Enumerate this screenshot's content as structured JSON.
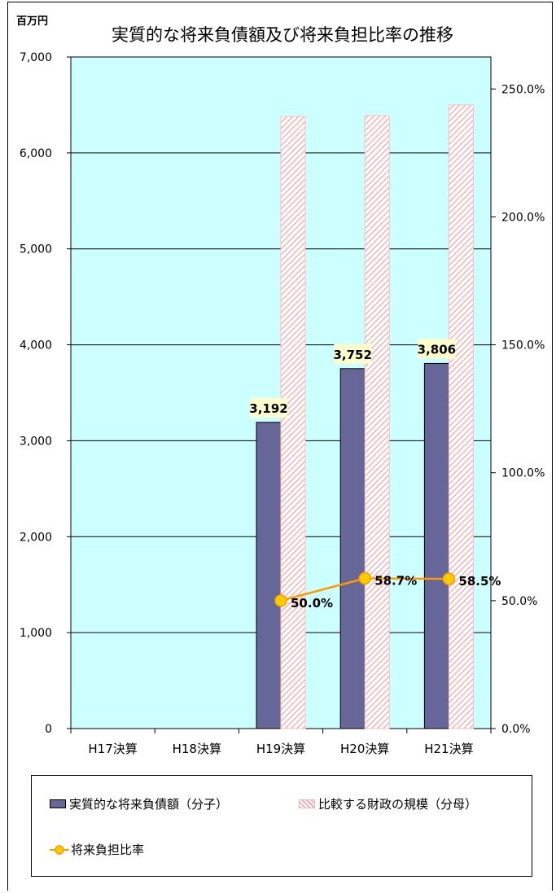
{
  "chart_data": {
    "type": "bar",
    "title": "実質的な将来負債額及び将来負担比率の推移",
    "y_left_unit": "百万円",
    "categories": [
      "H17決算",
      "H18決算",
      "H19決算",
      "H20決算",
      "H21決算"
    ],
    "ylim_left": [
      0,
      7000
    ],
    "yticks_left": [
      0,
      1000,
      2000,
      3000,
      4000,
      5000,
      6000,
      7000
    ],
    "yticklabels_left": [
      "0",
      "1,000",
      "2,000",
      "3,000",
      "4,000",
      "5,000",
      "6,000",
      "7,000"
    ],
    "ylim_right": [
      0,
      262.5
    ],
    "yticks_right": [
      0,
      50,
      100,
      150,
      200,
      250
    ],
    "yticklabels_right": [
      "0.0%",
      "50.0%",
      "100.0%",
      "150.0%",
      "200.0%",
      "250.0%"
    ],
    "grid": true,
    "plot_background": "#ccffff",
    "series": [
      {
        "name": "実質的な将来負債額（分子）",
        "type": "bar",
        "axis": "left",
        "color": "#666699",
        "values": [
          null,
          null,
          3192,
          3752,
          3806
        ],
        "data_labels": [
          null,
          null,
          "3,192",
          "3,752",
          "3,806"
        ],
        "label_bg": "#ffffcc"
      },
      {
        "name": "比較する財政の規模（分母）",
        "type": "bar",
        "axis": "left",
        "color": "#ff9999",
        "pattern": "diagonal-hatch",
        "values": [
          null,
          null,
          6380,
          6390,
          6500
        ]
      },
      {
        "name": "将来負担比率",
        "type": "line",
        "axis": "right",
        "color": "#ff9900",
        "marker_fill": "#ffcc00",
        "values": [
          null,
          null,
          50.0,
          58.7,
          58.5
        ],
        "data_labels": [
          null,
          null,
          "50.0%",
          "58.7%",
          "58.5%"
        ]
      }
    ],
    "legend_position": "bottom"
  }
}
